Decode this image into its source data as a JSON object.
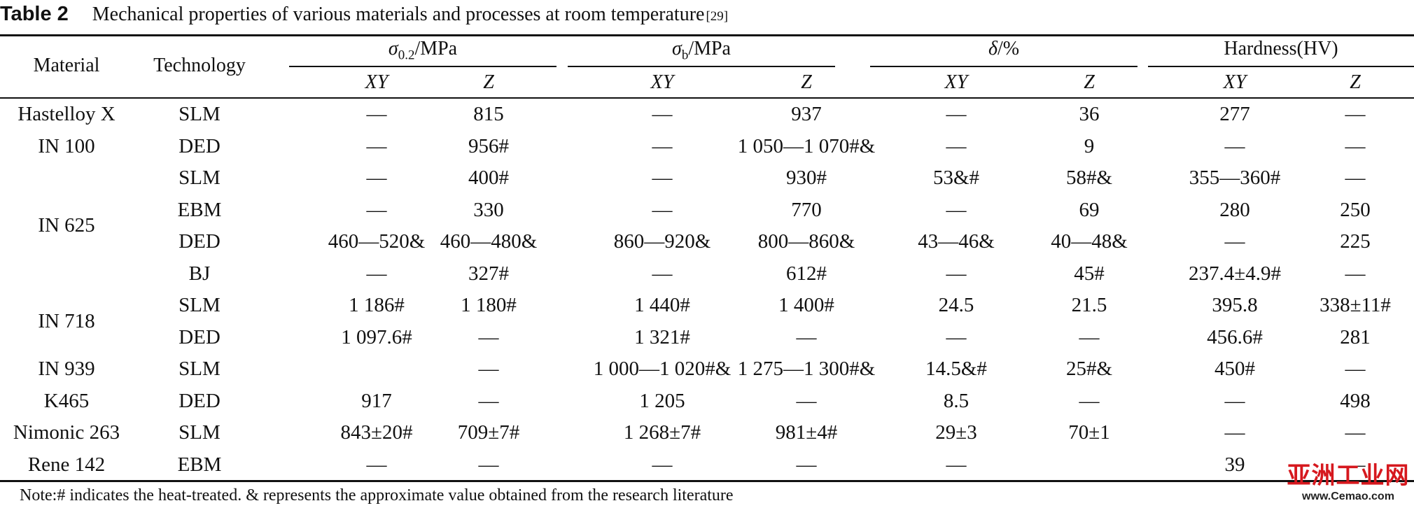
{
  "caption": {
    "tag": "Table 2",
    "text": "Mechanical properties of various materials and processes at room temperature",
    "ref": "[29]"
  },
  "headers": {
    "material": "Material",
    "technology": "Technology",
    "groups": [
      {
        "symbol": "σ",
        "sub": "0.2",
        "unit": "/MPa"
      },
      {
        "symbol": "σ",
        "sub": "b",
        "unit": "/MPa"
      },
      {
        "symbol": "δ",
        "sub": "",
        "unit": "/%"
      },
      {
        "label": "Hardness(HV)"
      }
    ],
    "subcols": [
      "XY",
      "Z",
      "XY",
      "Z",
      "XY",
      "Z",
      "XY",
      "Z"
    ]
  },
  "rows": [
    {
      "tech": "SLM",
      "cells": [
        "—",
        "815",
        "—",
        "937",
        "—",
        "36",
        "277",
        "—"
      ]
    },
    {
      "tech": "DED",
      "cells": [
        "—",
        "956#",
        "—",
        "1 050—1 070#&",
        "—",
        "9",
        "—",
        "—"
      ]
    },
    {
      "tech": "SLM",
      "cells": [
        "—",
        "400#",
        "—",
        "930#",
        "53&#",
        "58#&",
        "355—360#",
        "—"
      ]
    },
    {
      "tech": "EBM",
      "cells": [
        "—",
        "330",
        "—",
        "770",
        "—",
        "69",
        "280",
        "250"
      ]
    },
    {
      "tech": "DED",
      "cells": [
        "460—520&",
        "460—480&",
        "860—920&",
        "800—860&",
        "43—46&",
        "40—48&",
        "—",
        "225"
      ]
    },
    {
      "tech": "BJ",
      "cells": [
        "—",
        "327#",
        "—",
        "612#",
        "—",
        "45#",
        "237.4±4.9#",
        "—"
      ]
    },
    {
      "tech": "SLM",
      "cells": [
        "1 186#",
        "1 180#",
        "1 440#",
        "1 400#",
        "24.5",
        "21.5",
        "395.8",
        "338±11#"
      ]
    },
    {
      "tech": "DED",
      "cells": [
        "1 097.6#",
        "—",
        "1 321#",
        "—",
        "—",
        "—",
        "456.6#",
        "281"
      ]
    },
    {
      "tech": "SLM",
      "cells": [
        "",
        "—",
        "1 000—1 020#&",
        "1 275—1 300#&",
        "14.5&#",
        "25#&",
        "450#",
        "—"
      ]
    },
    {
      "tech": "DED",
      "cells": [
        "917",
        "—",
        "1 205",
        "—",
        "8.5",
        "—",
        "—",
        "498"
      ]
    },
    {
      "tech": "SLM",
      "cells": [
        "843±20#",
        "709±7#",
        "1 268±7#",
        "981±4#",
        "29±3",
        "70±1",
        "—",
        "—"
      ]
    },
    {
      "tech": "EBM",
      "cells": [
        "—",
        "—",
        "—",
        "—",
        "—",
        "",
        "39",
        "—"
      ]
    }
  ],
  "materials": [
    {
      "name": "Hastelloy X",
      "rows": [
        0
      ]
    },
    {
      "name": "IN 100",
      "rows": [
        1
      ]
    },
    {
      "name": "IN 625",
      "rows": [
        2,
        3,
        4,
        5
      ]
    },
    {
      "name": "IN 718",
      "rows": [
        6,
        7
      ]
    },
    {
      "name": "IN 939",
      "rows": [
        8
      ]
    },
    {
      "name": "K465",
      "rows": [
        9
      ]
    },
    {
      "name": "Nimonic 263",
      "rows": [
        10
      ]
    },
    {
      "name": "Rene 142",
      "rows": [
        11
      ]
    }
  ],
  "note": "Note:# indicates the heat-treated. & represents the approximate value obtained from the research literature",
  "watermark": {
    "main": "亚洲工业网",
    "url": "www.Cemao.com",
    "color": "#d6181e"
  }
}
